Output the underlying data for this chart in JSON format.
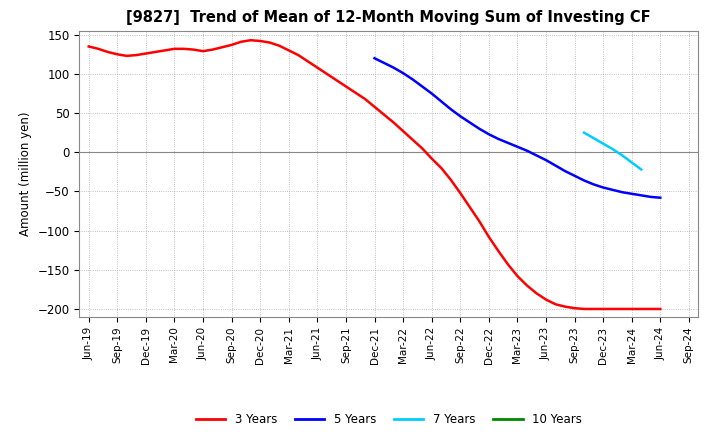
{
  "title": "[9827]  Trend of Mean of 12-Month Moving Sum of Investing CF",
  "ylabel": "Amount (million yen)",
  "background_color": "#ffffff",
  "plot_bg_color": "#ffffff",
  "grid_color": "#aaaaaa",
  "ylim": [
    -210,
    155
  ],
  "yticks": [
    -200,
    -150,
    -100,
    -50,
    0,
    50,
    100,
    150
  ],
  "series": {
    "3yr": {
      "color": "#ff0000",
      "label": "3 Years",
      "x_start": 0,
      "x": [
        0,
        1,
        2,
        3,
        4,
        5,
        6,
        7,
        8,
        9,
        10,
        11,
        12,
        13,
        14,
        15,
        16,
        17,
        18,
        19,
        20,
        21,
        22,
        23,
        24,
        25,
        26,
        27,
        28,
        29,
        30,
        31,
        32,
        33,
        34,
        35,
        36,
        37,
        38,
        39,
        40,
        41,
        42,
        43,
        44,
        45,
        46,
        47,
        48,
        49,
        50,
        51,
        52,
        53,
        54,
        55,
        56,
        57,
        58,
        59,
        60
      ],
      "y": [
        135,
        132,
        128,
        125,
        123,
        124,
        126,
        128,
        130,
        132,
        132,
        131,
        129,
        131,
        134,
        137,
        141,
        143,
        142,
        140,
        136,
        130,
        124,
        116,
        108,
        100,
        92,
        84,
        76,
        68,
        58,
        48,
        38,
        27,
        16,
        5,
        -8,
        -20,
        -35,
        -52,
        -70,
        -88,
        -108,
        -126,
        -143,
        -158,
        -170,
        -180,
        -188,
        -194,
        -197,
        -199,
        -200,
        -200,
        -200,
        -200,
        -200,
        -200,
        -200,
        -200,
        -200
      ]
    },
    "5yr": {
      "color": "#0000ff",
      "label": "5 Years",
      "x": [
        30,
        31,
        32,
        33,
        34,
        35,
        36,
        37,
        38,
        39,
        40,
        41,
        42,
        43,
        44,
        45,
        46,
        47,
        48,
        49,
        50,
        51,
        52,
        53,
        54,
        55,
        56,
        57,
        58,
        59,
        60
      ],
      "y": [
        120,
        114,
        108,
        101,
        93,
        84,
        75,
        65,
        55,
        46,
        38,
        30,
        23,
        17,
        12,
        7,
        2,
        -4,
        -10,
        -17,
        -24,
        -30,
        -36,
        -41,
        -45,
        -48,
        -51,
        -53,
        -55,
        -57,
        -58
      ]
    },
    "7yr": {
      "color": "#00ccff",
      "label": "7 Years",
      "x": [
        52,
        53,
        54,
        55,
        56,
        57,
        58
      ],
      "y": [
        25,
        18,
        11,
        4,
        -4,
        -13,
        -22
      ]
    },
    "10yr": {
      "color": "#008800",
      "label": "10 Years",
      "x": [],
      "y": []
    }
  },
  "xtick_labels": [
    "Jun-19",
    "Sep-19",
    "Dec-19",
    "Mar-20",
    "Jun-20",
    "Sep-20",
    "Dec-20",
    "Mar-21",
    "Jun-21",
    "Sep-21",
    "Dec-21",
    "Mar-22",
    "Jun-22",
    "Sep-22",
    "Dec-22",
    "Mar-23",
    "Jun-23",
    "Sep-23",
    "Dec-23",
    "Mar-24",
    "Jun-24",
    "Sep-24"
  ],
  "xtick_positions": [
    0,
    3,
    6,
    9,
    12,
    15,
    18,
    21,
    24,
    27,
    30,
    33,
    36,
    39,
    42,
    45,
    48,
    51,
    54,
    57,
    60,
    63
  ]
}
